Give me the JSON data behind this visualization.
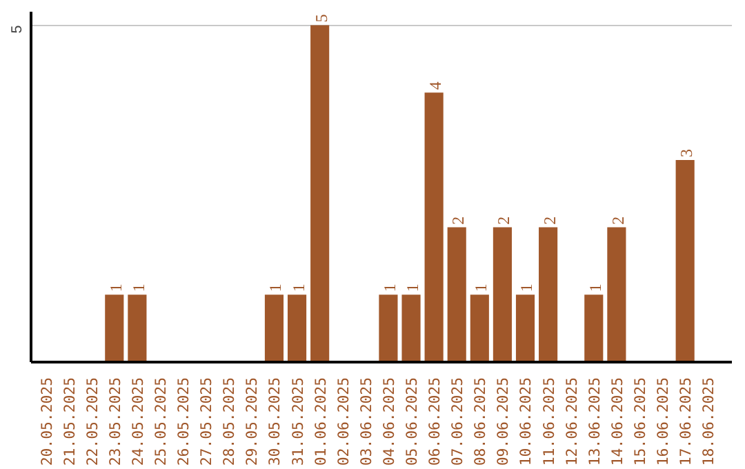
{
  "chart_data": {
    "type": "bar",
    "categories": [
      "20.05.2025",
      "21.05.2025",
      "22.05.2025",
      "23.05.2025",
      "24.05.2025",
      "25.05.2025",
      "26.05.2025",
      "27.05.2025",
      "28.05.2025",
      "29.05.2025",
      "30.05.2025",
      "31.05.2025",
      "01.06.2025",
      "02.06.2025",
      "03.06.2025",
      "04.06.2025",
      "05.06.2025",
      "06.06.2025",
      "07.06.2025",
      "08.06.2025",
      "09.06.2025",
      "10.06.2025",
      "11.06.2025",
      "12.06.2025",
      "13.06.2025",
      "14.06.2025",
      "15.06.2025",
      "16.06.2025",
      "17.06.2025",
      "18.06.2025"
    ],
    "values": [
      0,
      0,
      0,
      1,
      1,
      0,
      0,
      0,
      0,
      0,
      1,
      1,
      5,
      0,
      0,
      1,
      1,
      4,
      2,
      1,
      2,
      1,
      2,
      0,
      1,
      2,
      0,
      0,
      3,
      0
    ],
    "value_labels": [
      null,
      null,
      null,
      "1",
      "1",
      null,
      null,
      null,
      null,
      null,
      "1",
      "1",
      "5",
      null,
      null,
      "1",
      "1",
      "4",
      "2",
      "1",
      "2",
      "1",
      "2",
      null,
      "1",
      "2",
      null,
      null,
      "3",
      null
    ],
    "color": "#a0572a",
    "ylim": [
      0,
      5.2
    ],
    "yticks": [
      5
    ],
    "grid": "y"
  }
}
